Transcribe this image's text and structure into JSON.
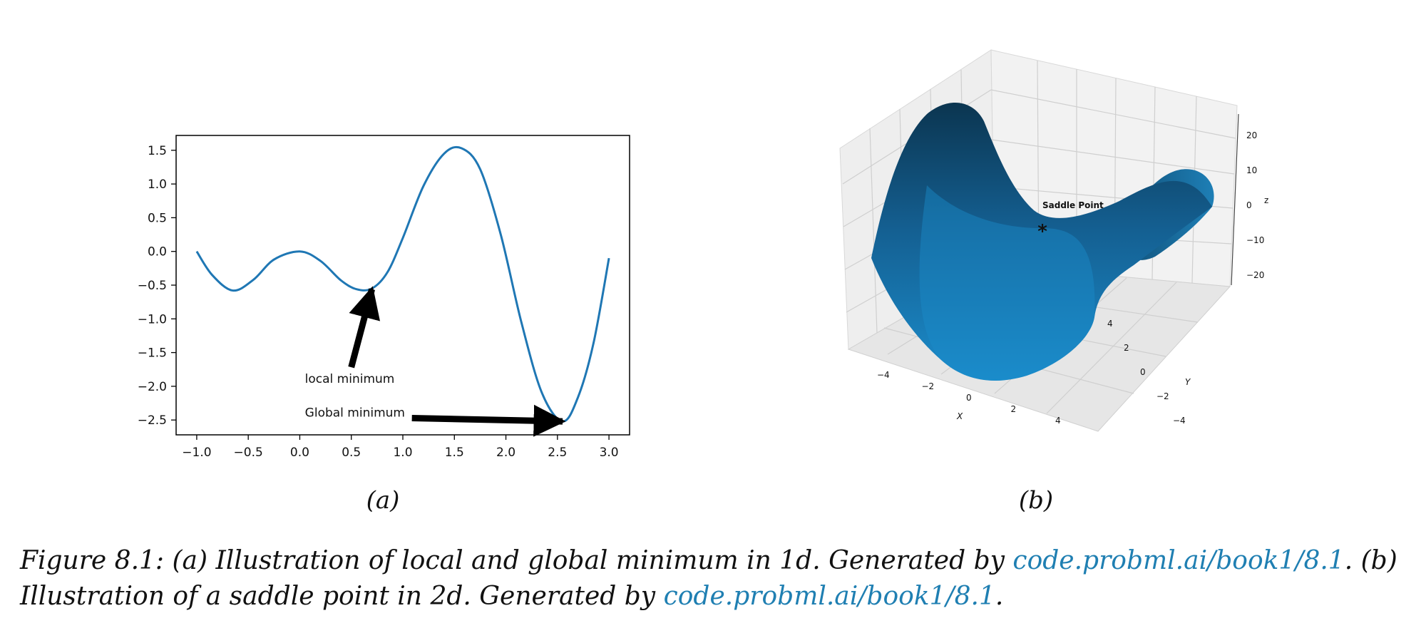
{
  "colors": {
    "curve": "#1f77b4",
    "surface_dark": "#0b3550",
    "surface_light": "#1a8bc9",
    "link": "#1f7fb2"
  },
  "panels": {
    "a_label": "(a)",
    "b_label": "(b)"
  },
  "chart_data": [
    {
      "type": "line",
      "title": "",
      "xlabel": "",
      "ylabel": "",
      "xlim": [
        -1.2,
        3.2
      ],
      "ylim": [
        -2.72,
        1.72
      ],
      "xticks": [
        "−1.0",
        "−0.5",
        "0.0",
        "0.5",
        "1.0",
        "1.5",
        "2.0",
        "2.5",
        "3.0"
      ],
      "yticks": [
        "1.5",
        "1.0",
        "0.5",
        "0.0",
        "−0.5",
        "−1.0",
        "−1.5",
        "−2.0",
        "−2.5"
      ],
      "series": [
        {
          "x": [
            -1.0,
            -0.85,
            -0.65,
            -0.45,
            -0.25,
            0.0,
            0.2,
            0.4,
            0.55,
            0.7,
            0.85,
            1.0,
            1.2,
            1.4,
            1.57,
            1.75,
            1.95,
            2.15,
            2.35,
            2.55,
            2.7,
            2.85,
            3.0
          ],
          "y": [
            0.0,
            -0.35,
            -0.58,
            -0.42,
            -0.12,
            0.0,
            -0.14,
            -0.43,
            -0.56,
            -0.55,
            -0.31,
            0.2,
            0.97,
            1.45,
            1.53,
            1.22,
            0.25,
            -1.05,
            -2.1,
            -2.52,
            -2.16,
            -1.36,
            -0.1
          ]
        }
      ],
      "annotations": [
        {
          "text": "local minimum",
          "point": [
            0.7,
            -0.56
          ],
          "text_xy": [
            0.05,
            -1.95
          ]
        },
        {
          "text": "Global minimum",
          "point": [
            2.55,
            -2.52
          ],
          "text_xy": [
            0.05,
            -2.45
          ]
        }
      ]
    },
    {
      "type": "surface",
      "function": "z = x^2 - y^2",
      "xlabel": "X",
      "ylabel": "Y",
      "zlabel": "Z",
      "xlim": [
        -5,
        5
      ],
      "ylim": [
        -5,
        5
      ],
      "zlim": [
        -25,
        25
      ],
      "xticks": [
        "−4",
        "−2",
        "0",
        "2",
        "4"
      ],
      "yticks": [
        "−4",
        "−2",
        "0",
        "2",
        "4"
      ],
      "zticks": [
        "20",
        "10",
        "0",
        "−10",
        "−20"
      ],
      "marker": {
        "x": 0,
        "y": 0,
        "z": 0,
        "symbol": "*",
        "label": "Saddle Point"
      }
    }
  ],
  "caption": {
    "prefix": "Figure 8.1: (a) Illustration of local and global minimum in 1d. Generated by ",
    "link1": "code.probml.ai/book1/8.1",
    "middle": ". (b) Illustration of a saddle point in 2d. Generated by ",
    "link2": "code.probml.ai/book1/8.1",
    "suffix": "."
  }
}
